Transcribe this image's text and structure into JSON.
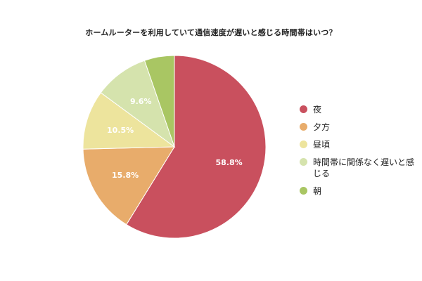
{
  "chart_data": {
    "type": "pie",
    "title": "ホームルーターを利用していて通信速度が遅いと感じる時間帯はいつ？",
    "slices": [
      {
        "label": "夜",
        "value": 58.8,
        "display": "58.8%",
        "color": "#c9505e",
        "show_label": true
      },
      {
        "label": "夕方",
        "value": 15.8,
        "display": "15.8%",
        "color": "#e8ac6b",
        "show_label": true
      },
      {
        "label": "昼頃",
        "value": 10.5,
        "display": "10.5%",
        "color": "#ede49d",
        "show_label": true
      },
      {
        "label": "時間帯に関係なく遅いと感じる",
        "value": 9.6,
        "display": "9.6%",
        "color": "#d5e3ad",
        "show_label": true
      },
      {
        "label": "朝",
        "value": 5.3,
        "display": "",
        "color": "#a9c663",
        "show_label": false
      }
    ],
    "legend_position": "right"
  }
}
